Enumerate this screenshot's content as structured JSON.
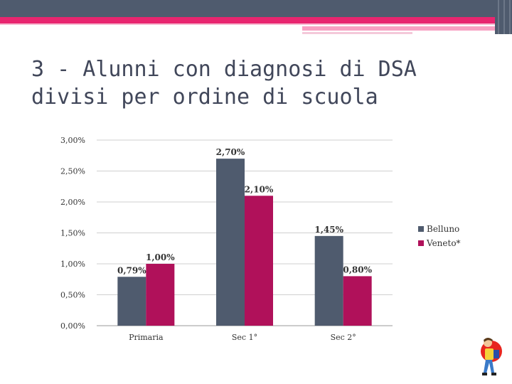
{
  "slide": {
    "title_line1": "3 - Alunni con diagnosi di DSA",
    "title_line2": "divisi per ordine di scuola"
  },
  "colors": {
    "header": "#4f5b6e",
    "accent": "#e8256f",
    "belluno": "#4f5b6e",
    "veneto": "#b0115a"
  },
  "chart_data": {
    "type": "bar",
    "categories": [
      "Primaria",
      "Sec 1°",
      "Sec 2°"
    ],
    "series": [
      {
        "name": "Belluno",
        "values": [
          0.79,
          2.7,
          1.45
        ],
        "labels": [
          "0,79%",
          "2,70%",
          "1,45%"
        ]
      },
      {
        "name": "Veneto*",
        "values": [
          1.0,
          2.1,
          0.8
        ],
        "labels": [
          "1,00%",
          "2,10%",
          "0,80%"
        ]
      }
    ],
    "ylim": [
      0,
      3
    ],
    "yticks": [
      {
        "value": 0,
        "label": "0,00%"
      },
      {
        "value": 0.5,
        "label": "0,50%"
      },
      {
        "value": 1,
        "label": "1,00%"
      },
      {
        "value": 1.5,
        "label": "1,50%"
      },
      {
        "value": 2,
        "label": "2,00%"
      },
      {
        "value": 2.5,
        "label": "2,50%"
      },
      {
        "value": 3,
        "label": "3,00%"
      }
    ],
    "grid": true,
    "legend": "right",
    "xlabel": "",
    "ylabel": ""
  }
}
